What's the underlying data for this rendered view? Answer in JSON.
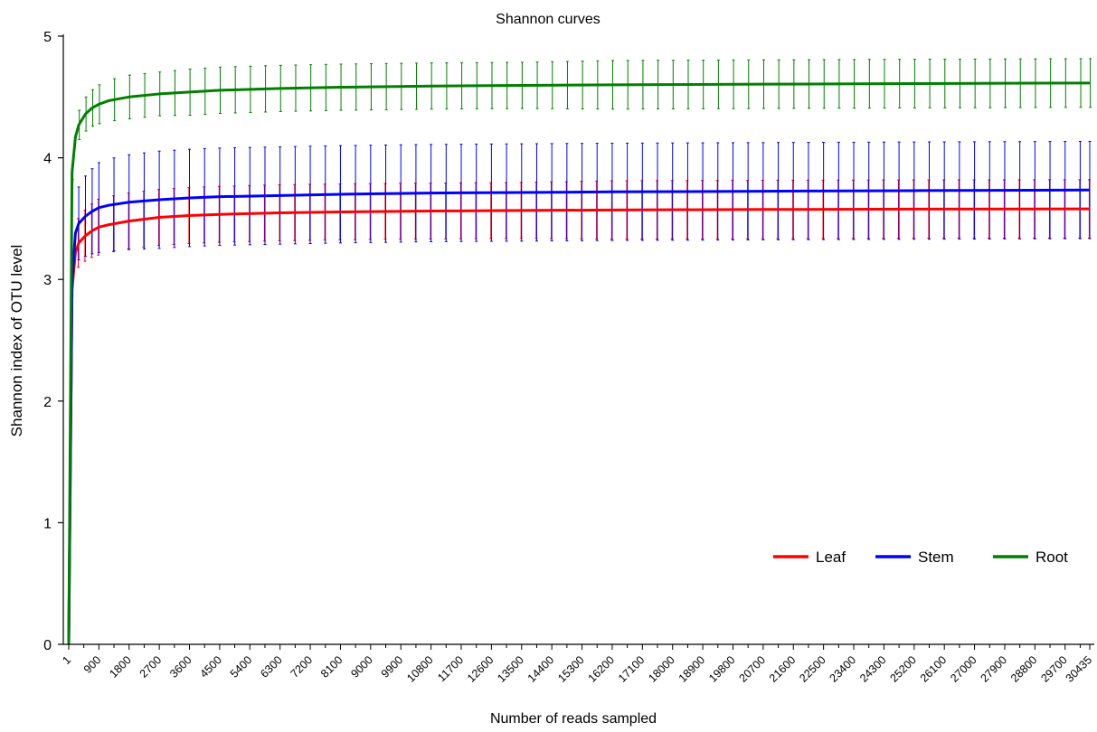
{
  "chart_data": {
    "type": "line",
    "title": "Shannon curves",
    "xlabel": "Number of reads sampled",
    "ylabel": "Shannon index of OTU level",
    "xlim": [
      1,
      30435
    ],
    "ylim": [
      0,
      5
    ],
    "y_ticks": [
      0,
      1,
      2,
      3,
      4,
      5
    ],
    "x_tick_labels": [
      "1",
      "900",
      "1800",
      "2700",
      "3600",
      "4500",
      "5400",
      "6300",
      "7200",
      "8100",
      "9000",
      "9900",
      "10800",
      "11700",
      "12600",
      "13500",
      "14400",
      "15300",
      "16200",
      "17100",
      "18000",
      "18900",
      "19800",
      "20700",
      "21600",
      "22500",
      "23400",
      "24300",
      "25200",
      "26100",
      "27000",
      "27900",
      "28800",
      "29700",
      "30435"
    ],
    "error_bars": true,
    "grid": false,
    "legend_position": "bottom-right",
    "x": [
      1,
      100,
      200,
      300,
      500,
      700,
      900,
      1200,
      1800,
      2700,
      3600,
      4500,
      6300,
      8100,
      10800,
      13500,
      16200,
      20700,
      25200,
      30435
    ],
    "series": [
      {
        "name": "Leaf",
        "color": "#ff0000",
        "values": [
          0.0,
          2.92,
          3.22,
          3.3,
          3.36,
          3.4,
          3.43,
          3.45,
          3.48,
          3.51,
          3.525,
          3.535,
          3.548,
          3.555,
          3.562,
          3.567,
          3.571,
          3.575,
          3.578,
          3.58
        ],
        "err": [
          0,
          0.1,
          0.17,
          0.2,
          0.21,
          0.22,
          0.23,
          0.23,
          0.23,
          0.23,
          0.23,
          0.23,
          0.23,
          0.23,
          0.23,
          0.23,
          0.24,
          0.24,
          0.24,
          0.24
        ]
      },
      {
        "name": "Stem",
        "color": "#0000ff",
        "values": [
          0.0,
          2.98,
          3.38,
          3.46,
          3.52,
          3.56,
          3.59,
          3.61,
          3.635,
          3.655,
          3.67,
          3.68,
          3.69,
          3.7,
          3.71,
          3.715,
          3.72,
          3.725,
          3.73,
          3.735
        ],
        "err": [
          0,
          0.12,
          0.25,
          0.3,
          0.33,
          0.35,
          0.37,
          0.38,
          0.39,
          0.4,
          0.4,
          0.4,
          0.4,
          0.4,
          0.4,
          0.4,
          0.4,
          0.4,
          0.4,
          0.4
        ]
      },
      {
        "name": "Root",
        "color": "#008000",
        "values": [
          0.0,
          3.88,
          4.17,
          4.27,
          4.36,
          4.41,
          4.44,
          4.47,
          4.5,
          4.525,
          4.54,
          4.555,
          4.57,
          4.58,
          4.59,
          4.595,
          4.6,
          4.605,
          4.61,
          4.615
        ],
        "err": [
          0,
          0.06,
          0.1,
          0.12,
          0.14,
          0.15,
          0.16,
          0.17,
          0.18,
          0.18,
          0.19,
          0.19,
          0.19,
          0.19,
          0.19,
          0.19,
          0.2,
          0.2,
          0.2,
          0.2
        ]
      }
    ]
  }
}
